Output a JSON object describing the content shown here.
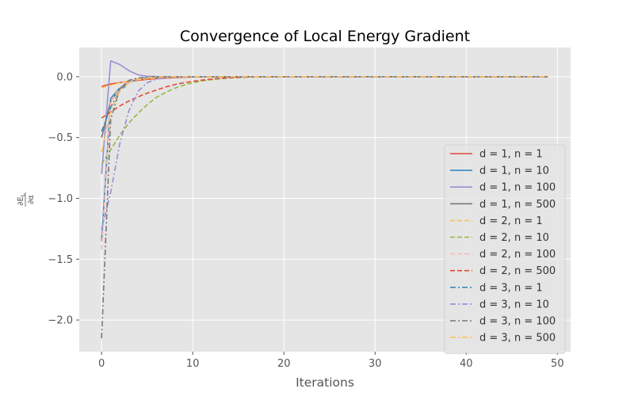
{
  "chart_data": {
    "type": "line",
    "title": "Convergence of Local Energy Gradient",
    "xlabel": "Iterations",
    "ylabel": "∂E_L/∂α",
    "xlim": [
      -2.45,
      51.45
    ],
    "ylim": [
      -2.26,
      0.24
    ],
    "xticks": [
      0,
      10,
      20,
      30,
      40,
      50
    ],
    "yticks": [
      -2.0,
      -1.5,
      -1.0,
      -0.5,
      0.0
    ],
    "xtick_labels": [
      "0",
      "10",
      "20",
      "30",
      "40",
      "50"
    ],
    "ytick_labels": [
      "−2.0",
      "−1.5",
      "−1.0",
      "−0.5",
      "0.0"
    ],
    "grid": true,
    "legend_position": "lower-right",
    "n_iterations": 50,
    "series": [
      {
        "name": "d = 1, n = 1",
        "color": "#E24A33",
        "dash": "solid",
        "values": [
          -0.08,
          -0.06,
          -0.048,
          -0.038,
          -0.03,
          -0.022,
          -0.016,
          -0.011,
          -0.008,
          -0.005,
          -0.003,
          -0.002,
          -0.001,
          -0.0005
        ]
      },
      {
        "name": "d = 1, n = 10",
        "color": "#348ABD",
        "dash": "solid",
        "values": [
          -1.35,
          -0.18,
          -0.09,
          -0.04,
          -0.02,
          -0.01,
          -0.004,
          -0.002,
          -0.001
        ]
      },
      {
        "name": "d = 1, n = 100",
        "color": "#988ED5",
        "dash": "solid",
        "values": [
          -0.8,
          0.13,
          0.1,
          0.05,
          0.015,
          0.004,
          0.001,
          0.0
        ]
      },
      {
        "name": "d = 1, n = 500",
        "color": "#777777",
        "dash": "solid",
        "values": [
          -0.5,
          -0.2,
          -0.1,
          -0.04,
          -0.02,
          -0.008,
          -0.003,
          -0.001
        ]
      },
      {
        "name": "d = 2, n = 1",
        "color": "#FBC15E",
        "dash": "dash",
        "values": [
          -0.09,
          -0.07,
          -0.05,
          -0.035,
          -0.025,
          -0.017,
          -0.011,
          -0.007,
          -0.004,
          -0.002,
          -0.001
        ]
      },
      {
        "name": "d = 2, n = 10",
        "color": "#8EBA42",
        "dash": "dash",
        "values": [
          -0.72,
          -0.6,
          -0.48,
          -0.38,
          -0.3,
          -0.23,
          -0.17,
          -0.13,
          -0.095,
          -0.07,
          -0.05,
          -0.035,
          -0.025,
          -0.017,
          -0.011,
          -0.007,
          -0.004,
          -0.002,
          -0.001
        ]
      },
      {
        "name": "d = 2, n = 100",
        "color": "#FFB5B8",
        "dash": "dash",
        "values": [
          -1.42,
          -0.2,
          -0.09,
          -0.04,
          -0.015,
          -0.006,
          -0.002,
          -0.001
        ]
      },
      {
        "name": "d = 2, n = 500",
        "color": "#E24A33",
        "dash": "dash",
        "values": [
          -0.34,
          -0.29,
          -0.24,
          -0.2,
          -0.165,
          -0.135,
          -0.11,
          -0.085,
          -0.065,
          -0.05,
          -0.038,
          -0.028,
          -0.02,
          -0.014,
          -0.009,
          -0.006,
          -0.003,
          -0.001
        ]
      },
      {
        "name": "d = 3, n = 1",
        "color": "#348ABD",
        "dash": "dashdot",
        "values": [
          -0.45,
          -0.25,
          -0.12,
          -0.05,
          -0.02,
          -0.008,
          -0.003,
          -0.001
        ]
      },
      {
        "name": "d = 3, n = 10",
        "color": "#988ED5",
        "dash": "dashdot",
        "values": [
          -1.25,
          -0.95,
          -0.55,
          -0.28,
          -0.12,
          -0.05,
          -0.02,
          -0.008,
          -0.003,
          -0.001
        ]
      },
      {
        "name": "d = 3, n = 100",
        "color": "#777777",
        "dash": "dashdot",
        "values": [
          -2.15,
          -0.35,
          -0.1,
          -0.03,
          -0.01,
          -0.003,
          -0.001
        ]
      },
      {
        "name": "d = 3, n = 500",
        "color": "#FBC15E",
        "dash": "dashdot",
        "values": [
          -0.62,
          -0.28,
          -0.12,
          -0.05,
          -0.02,
          -0.008,
          -0.003,
          -0.001
        ]
      }
    ]
  }
}
